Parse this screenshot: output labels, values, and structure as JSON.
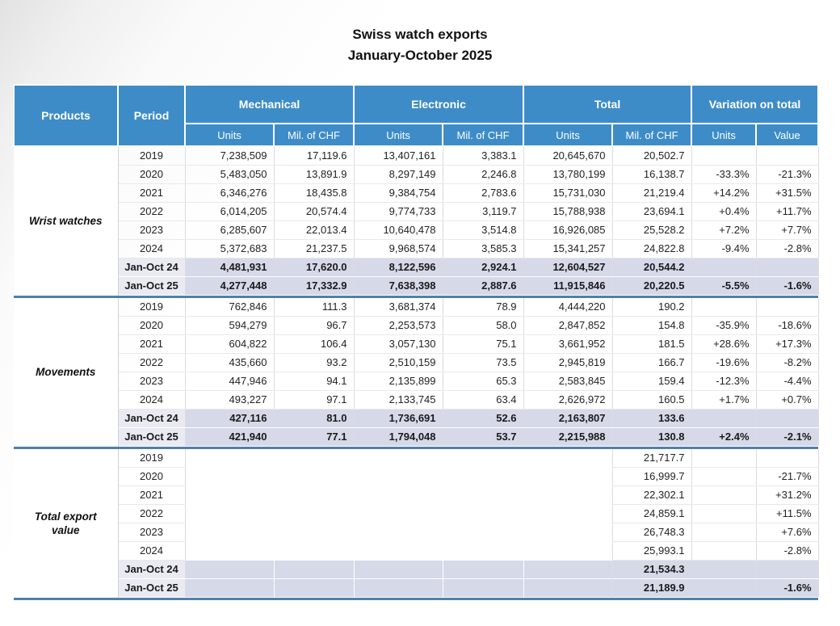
{
  "title": {
    "line1": "Swiss watch exports",
    "line2": "January-October 2025"
  },
  "colors": {
    "header_blue": "#3E8CC7",
    "highlight_row": "#D6D9E8",
    "highlight_period_cell": "#E9EAF2",
    "section_divider": "#4F81A8"
  },
  "table": {
    "header": {
      "products": "Products",
      "period": "Period",
      "groups": [
        {
          "label": "Mechanical",
          "sub1": "Units",
          "sub2": "Mil. of CHF"
        },
        {
          "label": "Electronic",
          "sub1": "Units",
          "sub2": "Mil. of CHF"
        },
        {
          "label": "Total",
          "sub1": "Units",
          "sub2": "Mil. of CHF"
        },
        {
          "label": "Variation on total",
          "sub1": "Units",
          "sub2": "Value"
        }
      ]
    },
    "sections": [
      {
        "product": "Wrist watches",
        "rows": [
          {
            "period": "2019",
            "highlight": false,
            "cells": [
              "7,238,509",
              "17,119.6",
              "13,407,161",
              "3,383.1",
              "20,645,670",
              "20,502.7",
              "",
              ""
            ]
          },
          {
            "period": "2020",
            "highlight": false,
            "cells": [
              "5,483,050",
              "13,891.9",
              "8,297,149",
              "2,246.8",
              "13,780,199",
              "16,138.7",
              "-33.3%",
              "-21.3%"
            ]
          },
          {
            "period": "2021",
            "highlight": false,
            "cells": [
              "6,346,276",
              "18,435.8",
              "9,384,754",
              "2,783.6",
              "15,731,030",
              "21,219.4",
              "+14.2%",
              "+31.5%"
            ]
          },
          {
            "period": "2022",
            "highlight": false,
            "cells": [
              "6,014,205",
              "20,574.4",
              "9,774,733",
              "3,119.7",
              "15,788,938",
              "23,694.1",
              "+0.4%",
              "+11.7%"
            ]
          },
          {
            "period": "2023",
            "highlight": false,
            "cells": [
              "6,285,607",
              "22,013.4",
              "10,640,478",
              "3,514.8",
              "16,926,085",
              "25,528.2",
              "+7.2%",
              "+7.7%"
            ]
          },
          {
            "period": "2024",
            "highlight": false,
            "cells": [
              "5,372,683",
              "21,237.5",
              "9,968,574",
              "3,585.3",
              "15,341,257",
              "24,822.8",
              "-9.4%",
              "-2.8%"
            ]
          },
          {
            "period": "Jan-Oct 24",
            "highlight": true,
            "cells": [
              "4,481,931",
              "17,620.0",
              "8,122,596",
              "2,924.1",
              "12,604,527",
              "20,544.2",
              "",
              ""
            ]
          },
          {
            "period": "Jan-Oct 25",
            "highlight": true,
            "cells": [
              "4,277,448",
              "17,332.9",
              "7,638,398",
              "2,887.6",
              "11,915,846",
              "20,220.5",
              "-5.5%",
              "-1.6%"
            ]
          }
        ]
      },
      {
        "product": "Movements",
        "rows": [
          {
            "period": "2019",
            "highlight": false,
            "cells": [
              "762,846",
              "111.3",
              "3,681,374",
              "78.9",
              "4,444,220",
              "190.2",
              "",
              ""
            ]
          },
          {
            "period": "2020",
            "highlight": false,
            "cells": [
              "594,279",
              "96.7",
              "2,253,573",
              "58.0",
              "2,847,852",
              "154.8",
              "-35.9%",
              "-18.6%"
            ]
          },
          {
            "period": "2021",
            "highlight": false,
            "cells": [
              "604,822",
              "106.4",
              "3,057,130",
              "75.1",
              "3,661,952",
              "181.5",
              "+28.6%",
              "+17.3%"
            ]
          },
          {
            "period": "2022",
            "highlight": false,
            "cells": [
              "435,660",
              "93.2",
              "2,510,159",
              "73.5",
              "2,945,819",
              "166.7",
              "-19.6%",
              "-8.2%"
            ]
          },
          {
            "period": "2023",
            "highlight": false,
            "cells": [
              "447,946",
              "94.1",
              "2,135,899",
              "65.3",
              "2,583,845",
              "159.4",
              "-12.3%",
              "-4.4%"
            ]
          },
          {
            "period": "2024",
            "highlight": false,
            "cells": [
              "493,227",
              "97.1",
              "2,133,745",
              "63.4",
              "2,626,972",
              "160.5",
              "+1.7%",
              "+0.7%"
            ]
          },
          {
            "period": "Jan-Oct 24",
            "highlight": true,
            "cells": [
              "427,116",
              "81.0",
              "1,736,691",
              "52.6",
              "2,163,807",
              "133.6",
              "",
              ""
            ]
          },
          {
            "period": "Jan-Oct 25",
            "highlight": true,
            "cells": [
              "421,940",
              "77.1",
              "1,794,048",
              "53.7",
              "2,215,988",
              "130.8",
              "+2.4%",
              "-2.1%"
            ]
          }
        ]
      },
      {
        "product": "Total export value",
        "rows": [
          {
            "period": "2019",
            "highlight": false,
            "cells": [
              "",
              "",
              "",
              "",
              "",
              "21,717.7",
              "",
              ""
            ]
          },
          {
            "period": "2020",
            "highlight": false,
            "cells": [
              "",
              "",
              "",
              "",
              "",
              "16,999.7",
              "",
              "-21.7%"
            ]
          },
          {
            "period": "2021",
            "highlight": false,
            "cells": [
              "",
              "",
              "",
              "",
              "",
              "22,302.1",
              "",
              "+31.2%"
            ]
          },
          {
            "period": "2022",
            "highlight": false,
            "cells": [
              "",
              "",
              "",
              "",
              "",
              "24,859.1",
              "",
              "+11.5%"
            ]
          },
          {
            "period": "2023",
            "highlight": false,
            "cells": [
              "",
              "",
              "",
              "",
              "",
              "26,748.3",
              "",
              "+7.6%"
            ]
          },
          {
            "period": "2024",
            "highlight": false,
            "cells": [
              "",
              "",
              "",
              "",
              "",
              "25,993.1",
              "",
              "-2.8%"
            ]
          },
          {
            "period": "Jan-Oct 24",
            "highlight": true,
            "cells": [
              "",
              "",
              "",
              "",
              "",
              "21,534.3",
              "",
              ""
            ]
          },
          {
            "period": "Jan-Oct 25",
            "highlight": true,
            "cells": [
              "",
              "",
              "",
              "",
              "",
              "21,189.9",
              "",
              "-1.6%"
            ]
          }
        ]
      }
    ]
  }
}
